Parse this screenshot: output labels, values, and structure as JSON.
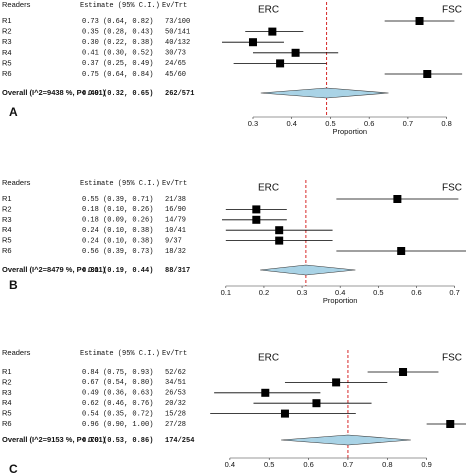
{
  "chart_data": [
    {
      "type": "forest",
      "panel": "A",
      "header": [
        "Readers",
        "Estimate (95% C.I.)",
        "Ev/Trt"
      ],
      "left_label": "ERC",
      "right_label": "FSC",
      "xlabel": "Proportion",
      "categories": [
        "R1",
        "R2",
        "R3",
        "R4",
        "R5",
        "R6"
      ],
      "values": [
        0.73,
        0.35,
        0.3,
        0.41,
        0.37,
        0.75
      ],
      "lower": [
        0.64,
        0.28,
        0.22,
        0.3,
        0.25,
        0.64
      ],
      "upper": [
        0.82,
        0.43,
        0.38,
        0.52,
        0.49,
        0.84
      ],
      "value_labels": [
        "0.73 (0.64, 0.82)",
        "0.35 (0.28, 0.43)",
        "0.30 (0.22, 0.38)",
        "0.41 (0.30, 0.52)",
        "0.37 (0.25, 0.49)",
        "0.75 (0.64, 0.84)"
      ],
      "ev_trt": [
        "73/100",
        "50/141",
        "40/132",
        "30/73",
        "24/65",
        "45/60"
      ],
      "overall": {
        "label": "Overall (I^2=9438 %, P< 0.01)",
        "value": 0.49,
        "lower": 0.32,
        "upper": 0.65,
        "value_label": "0.49 (0.32, 0.65)",
        "ev_trt": "262/571"
      },
      "xlim": [
        0.22,
        0.85
      ],
      "xticks": [
        0.3,
        0.4,
        0.5,
        0.6,
        0.7,
        0.8
      ],
      "color": "#000000",
      "ref_color": "#d62728",
      "diamond_color": "#a9d3e6"
    },
    {
      "type": "forest",
      "panel": "B",
      "header": [
        "Readers",
        "Estimate (95% C.I.)",
        "Ev/Trt"
      ],
      "left_label": "ERC",
      "right_label": "FSC",
      "xlabel": "Proportion",
      "categories": [
        "R1",
        "R2",
        "R3",
        "R4",
        "R5",
        "R6"
      ],
      "values": [
        0.55,
        0.18,
        0.18,
        0.24,
        0.24,
        0.56
      ],
      "lower": [
        0.39,
        0.1,
        0.09,
        0.1,
        0.1,
        0.39
      ],
      "upper": [
        0.71,
        0.26,
        0.26,
        0.38,
        0.38,
        0.73
      ],
      "value_labels": [
        "0.55 (0.39, 0.71)",
        "0.18 (0.10, 0.26)",
        "0.18 (0.09, 0.26)",
        "0.24 (0.10, 0.38)",
        "0.24 (0.10, 0.38)",
        "0.56 (0.39, 0.73)"
      ],
      "ev_trt": [
        "21/38",
        "16/90",
        "14/79",
        "10/41",
        "9/37",
        "18/32"
      ],
      "overall": {
        "label": "Overall (I^2=8479 %, P< 0.01)",
        "value": 0.31,
        "lower": 0.19,
        "upper": 0.44,
        "value_label": "0.31 (0.19, 0.44)",
        "ev_trt": "88/317"
      },
      "xlim": [
        0.09,
        0.73
      ],
      "xticks": [
        0.1,
        0.2,
        0.3,
        0.4,
        0.5,
        0.6,
        0.7
      ],
      "color": "#000000",
      "ref_color": "#d62728",
      "diamond_color": "#a9d3e6"
    },
    {
      "type": "forest",
      "panel": "C",
      "header": [
        "Readers",
        "Estimate (95% C.I.)",
        "Ev/Trt"
      ],
      "left_label": "ERC",
      "right_label": "FSC",
      "categories": [
        "R1",
        "R2",
        "R3",
        "R4",
        "R5",
        "R6"
      ],
      "values": [
        0.84,
        0.67,
        0.49,
        0.62,
        0.54,
        0.96
      ],
      "lower": [
        0.75,
        0.54,
        0.36,
        0.46,
        0.35,
        0.9
      ],
      "upper": [
        0.93,
        0.8,
        0.63,
        0.76,
        0.72,
        1.0
      ],
      "value_labels": [
        "0.84 (0.75, 0.93)",
        "0.67 (0.54, 0.80)",
        "0.49 (0.36, 0.63)",
        "0.62 (0.46, 0.76)",
        "0.54 (0.35, 0.72)",
        "0.96 (0.90, 1.00)"
      ],
      "ev_trt": [
        "52/62",
        "34/51",
        "26/53",
        "20/32",
        "15/28",
        "27/28"
      ],
      "overall": {
        "label": "Overall (I^2=9153 %, P< 0.01)",
        "value": 0.7,
        "lower": 0.53,
        "upper": 0.86,
        "value_label": "0.70 (0.53, 0.86)",
        "ev_trt": "174/254"
      },
      "xlim": [
        0.38,
        1.0
      ],
      "xticks": [
        0.4,
        0.5,
        0.6,
        0.7,
        0.8,
        0.9
      ],
      "color": "#000000",
      "ref_color": "#d62728",
      "diamond_color": "#a9d3e6"
    }
  ]
}
